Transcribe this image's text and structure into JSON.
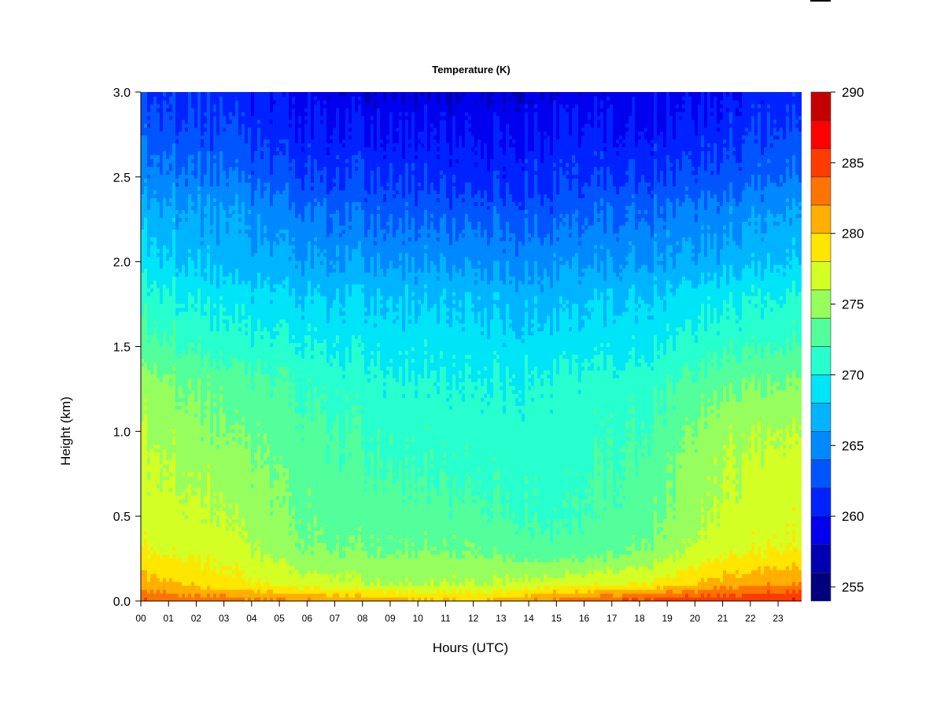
{
  "chart_data": {
    "type": "heatmap",
    "title": "Temperature (K)",
    "xlabel": "Hours (UTC)",
    "ylabel": "Height (km)",
    "x_ticks": [
      "00",
      "01",
      "02",
      "03",
      "04",
      "05",
      "06",
      "07",
      "08",
      "09",
      "10",
      "11",
      "12",
      "13",
      "14",
      "15",
      "16",
      "17",
      "18",
      "19",
      "20",
      "21",
      "22",
      "23"
    ],
    "xlim": [
      0,
      23.85
    ],
    "y_ticks": [
      "0.0",
      "0.5",
      "1.0",
      "1.5",
      "2.0",
      "2.5",
      "3.0"
    ],
    "ylim": [
      0,
      3.0
    ],
    "colorbar": {
      "levels": [
        254,
        256,
        258,
        260,
        262,
        264,
        266,
        268,
        270,
        272,
        274,
        276,
        278,
        280,
        282,
        284,
        286,
        288,
        290
      ],
      "colors": [
        "#00007f",
        "#0000b2",
        "#0000ee",
        "#0022ff",
        "#0055ff",
        "#0088ff",
        "#00b4ff",
        "#00e4f8",
        "#28ffce",
        "#52ff9a",
        "#96ff5e",
        "#d4ff24",
        "#ffe600",
        "#ffaf00",
        "#ff7400",
        "#ff3c00",
        "#ff0000",
        "#c40000",
        "#800000"
      ],
      "tick_labels": [
        "255",
        "260",
        "265",
        "270",
        "275",
        "280",
        "285",
        "290"
      ],
      "tick_values": [
        255,
        260,
        265,
        270,
        275,
        280,
        285,
        290
      ]
    },
    "series": [
      {
        "hour": 0,
        "temperature_profile": {
          "0.0": 284,
          "0.1": 281,
          "0.3": 278,
          "0.5": 277,
          "0.8": 276.5,
          "1.0": 276,
          "1.3": 275,
          "1.5": 273,
          "1.8": 271,
          "2.0": 269,
          "2.3": 267,
          "2.5": 265,
          "2.8": 263,
          "3.0": 262
        }
      },
      {
        "hour": 3,
        "temperature_profile": {
          "0.0": 283,
          "0.1": 279,
          "0.3": 277,
          "0.5": 276,
          "0.8": 275,
          "1.0": 274,
          "1.3": 273,
          "1.5": 271,
          "1.8": 269,
          "2.0": 267,
          "2.3": 266,
          "2.5": 264,
          "2.8": 262,
          "3.0": 261
        }
      },
      {
        "hour": 6,
        "temperature_profile": {
          "0.0": 282,
          "0.1": 277,
          "0.3": 274,
          "0.5": 273.5,
          "0.8": 273,
          "1.0": 272.5,
          "1.3": 271.5,
          "1.5": 270,
          "1.8": 268,
          "2.0": 266,
          "2.3": 264,
          "2.5": 262,
          "2.8": 260,
          "3.0": 259
        }
      },
      {
        "hour": 9,
        "temperature_profile": {
          "0.0": 281,
          "0.1": 276,
          "0.3": 274,
          "0.5": 273,
          "0.8": 272,
          "1.0": 271.5,
          "1.3": 270.5,
          "1.5": 269.5,
          "1.8": 268,
          "2.0": 266,
          "2.3": 263.5,
          "2.5": 262,
          "2.8": 260,
          "3.0": 258.5
        }
      },
      {
        "hour": 12,
        "temperature_profile": {
          "0.0": 280,
          "0.1": 276,
          "0.3": 274,
          "0.5": 272.5,
          "0.8": 271.5,
          "1.0": 271,
          "1.3": 270,
          "1.5": 269,
          "1.8": 267.5,
          "2.0": 265.5,
          "2.3": 263,
          "2.5": 261,
          "2.8": 259.5,
          "3.0": 258
        }
      },
      {
        "hour": 15,
        "temperature_profile": {
          "0.0": 283,
          "0.1": 277,
          "0.3": 272.5,
          "0.5": 271.5,
          "0.8": 271,
          "1.0": 271,
          "1.3": 270.5,
          "1.5": 269,
          "1.8": 267,
          "2.0": 265.5,
          "2.3": 263,
          "2.5": 261.5,
          "2.8": 260,
          "3.0": 258.5
        }
      },
      {
        "hour": 18,
        "temperature_profile": {
          "0.0": 285,
          "0.1": 278,
          "0.3": 274,
          "0.5": 273,
          "0.8": 272.5,
          "1.0": 272,
          "1.3": 271,
          "1.5": 269.5,
          "1.8": 268,
          "2.0": 266,
          "2.3": 264,
          "2.5": 262,
          "2.8": 260,
          "3.0": 259
        }
      },
      {
        "hour": 21,
        "temperature_profile": {
          "0.0": 286,
          "0.1": 281,
          "0.3": 277.5,
          "0.5": 276.5,
          "0.8": 276,
          "1.0": 275.5,
          "1.3": 273.5,
          "1.5": 271.5,
          "1.8": 269.5,
          "2.0": 267,
          "2.3": 265,
          "2.5": 263,
          "2.8": 261,
          "3.0": 260
        }
      },
      {
        "hour": 23.85,
        "temperature_profile": {
          "0.0": 286,
          "0.1": 282,
          "0.3": 278,
          "0.5": 277.5,
          "0.8": 277,
          "1.0": 276,
          "1.3": 274,
          "1.5": 272,
          "1.8": 270,
          "2.0": 268,
          "2.3": 266,
          "2.5": 264,
          "2.8": 262,
          "3.0": 261
        }
      }
    ],
    "grid": false,
    "legend": "right"
  }
}
